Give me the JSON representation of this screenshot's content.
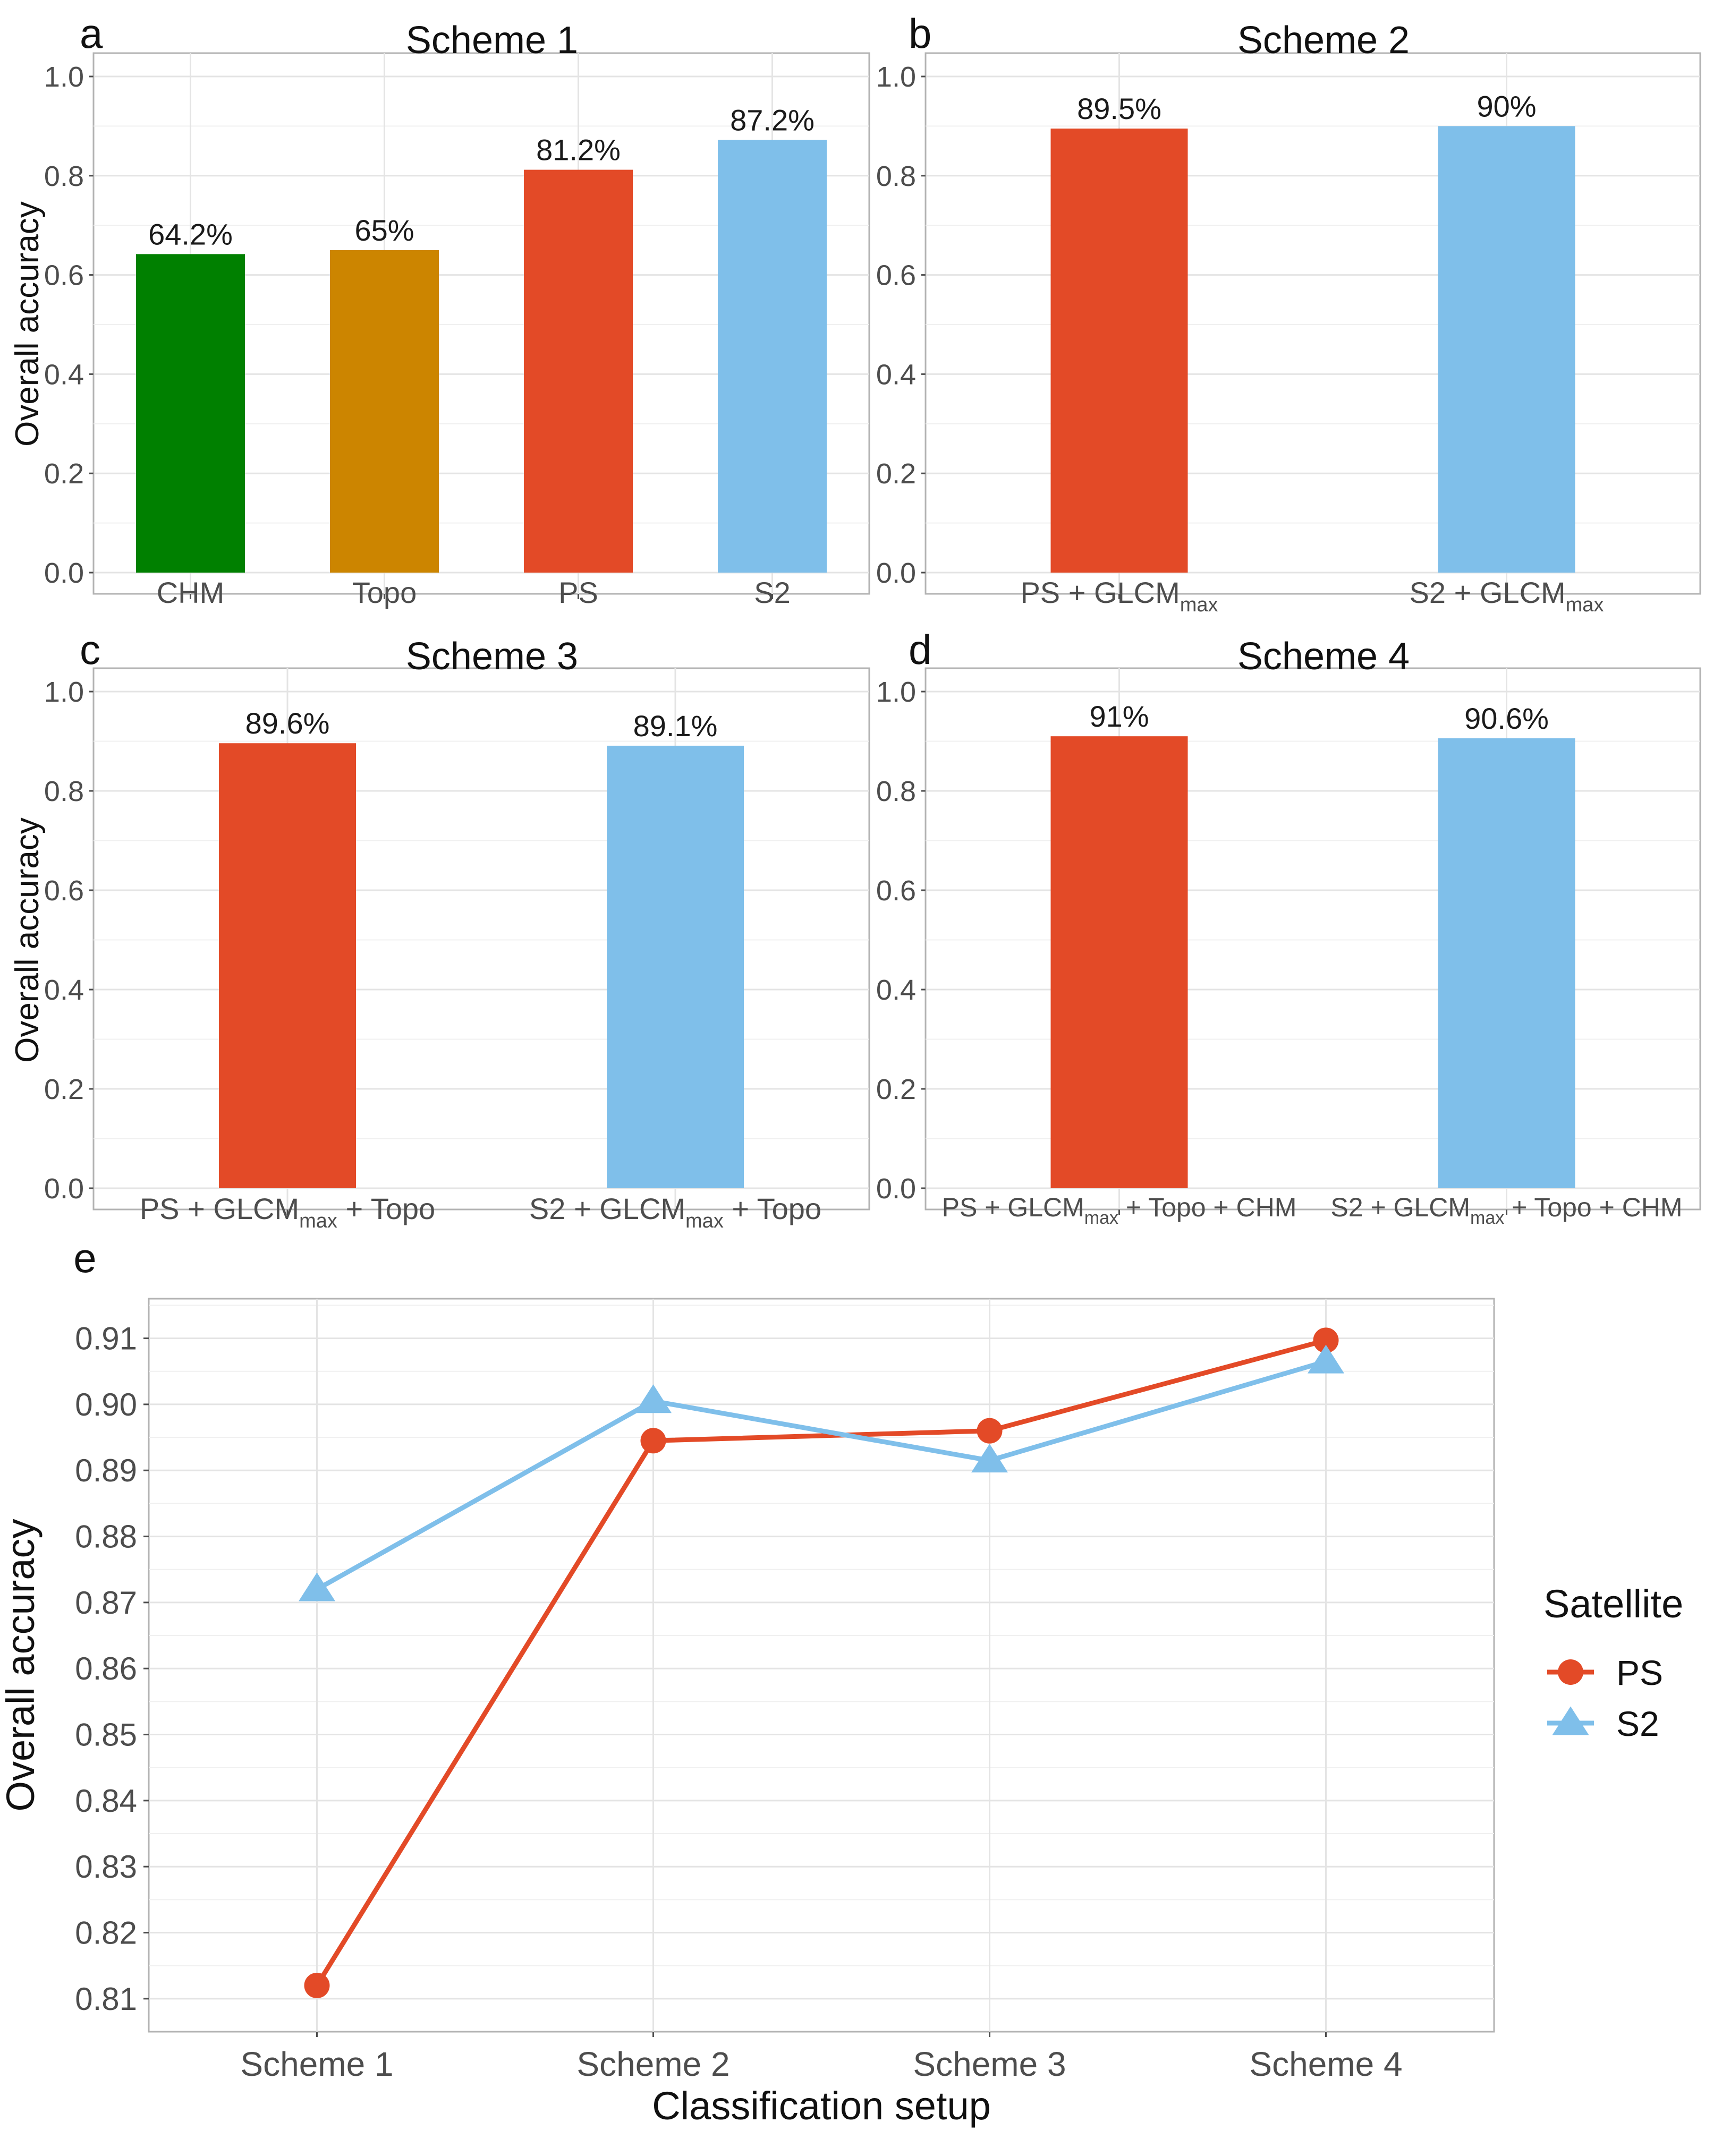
{
  "chart_data": [
    {
      "type": "bar",
      "panel_letter": "a",
      "title": "Scheme 1",
      "ylabel": "Overall accuracy",
      "xlabel": "",
      "ylim": [
        0,
        1.0
      ],
      "yticks": [
        "0.0",
        "0.2",
        "0.4",
        "0.6",
        "0.8",
        "1.0"
      ],
      "grid": true,
      "categories": [
        {
          "parts": [
            {
              "t": "CHM"
            }
          ]
        },
        {
          "parts": [
            {
              "t": "Topo"
            }
          ]
        },
        {
          "parts": [
            {
              "t": "PS"
            }
          ]
        },
        {
          "parts": [
            {
              "t": "S2"
            }
          ]
        }
      ],
      "values": [
        0.642,
        0.65,
        0.812,
        0.872
      ],
      "labels": [
        "64.2%",
        "65%",
        "81.2%",
        "87.2%"
      ],
      "colors": [
        "#008000",
        "#CC8500",
        "#E34A27",
        "#7FBFEA"
      ]
    },
    {
      "type": "bar",
      "panel_letter": "b",
      "title": "Scheme 2",
      "ylabel": "",
      "xlabel": "",
      "ylim": [
        0,
        1.0
      ],
      "yticks": [
        "0.0",
        "0.2",
        "0.4",
        "0.6",
        "0.8",
        "1.0"
      ],
      "grid": true,
      "categories": [
        {
          "parts": [
            {
              "t": "PS + GLCM"
            },
            {
              "t": "max",
              "sub": true
            }
          ]
        },
        {
          "parts": [
            {
              "t": "S2 + GLCM"
            },
            {
              "t": "max",
              "sub": true
            }
          ]
        }
      ],
      "values": [
        0.895,
        0.9
      ],
      "labels": [
        "89.5%",
        "90%"
      ],
      "colors": [
        "#E34A27",
        "#7FBFEA"
      ]
    },
    {
      "type": "bar",
      "panel_letter": "c",
      "title": "Scheme 3",
      "ylabel": "Overall accuracy",
      "xlabel": "",
      "ylim": [
        0,
        1.0
      ],
      "yticks": [
        "0.0",
        "0.2",
        "0.4",
        "0.6",
        "0.8",
        "1.0"
      ],
      "grid": true,
      "categories": [
        {
          "parts": [
            {
              "t": "PS + GLCM"
            },
            {
              "t": "max",
              "sub": true
            },
            {
              "t": " + Topo"
            }
          ]
        },
        {
          "parts": [
            {
              "t": "S2 + GLCM"
            },
            {
              "t": "max",
              "sub": true
            },
            {
              "t": " + Topo"
            }
          ]
        }
      ],
      "values": [
        0.896,
        0.891
      ],
      "labels": [
        "89.6%",
        "89.1%"
      ],
      "colors": [
        "#E34A27",
        "#7FBFEA"
      ]
    },
    {
      "type": "bar",
      "panel_letter": "d",
      "title": "Scheme 4",
      "ylabel": "",
      "xlabel": "",
      "ylim": [
        0,
        1.0
      ],
      "yticks": [
        "0.0",
        "0.2",
        "0.4",
        "0.6",
        "0.8",
        "1.0"
      ],
      "grid": true,
      "categories": [
        {
          "parts": [
            {
              "t": "PS + GLCM"
            },
            {
              "t": "max",
              "sub": true
            },
            {
              "t": " + Topo + CHM"
            }
          ]
        },
        {
          "parts": [
            {
              "t": "S2 + GLCM"
            },
            {
              "t": "max",
              "sub": true
            },
            {
              "t": " + Topo + CHM"
            }
          ]
        }
      ],
      "values": [
        0.91,
        0.906
      ],
      "labels": [
        "91%",
        "90.6%"
      ],
      "colors": [
        "#E34A27",
        "#7FBFEA"
      ]
    },
    {
      "type": "line",
      "panel_letter": "e",
      "title": "",
      "xlabel": "Classification setup",
      "ylabel": "Overall accuracy",
      "ylim": [
        0.805,
        0.916
      ],
      "yticks": [
        "0.81",
        "0.82",
        "0.83",
        "0.84",
        "0.85",
        "0.86",
        "0.87",
        "0.88",
        "0.89",
        "0.90",
        "0.91"
      ],
      "grid": true,
      "categories": [
        "Scheme 1",
        "Scheme 2",
        "Scheme 3",
        "Scheme 4"
      ],
      "series": [
        {
          "name": "PS",
          "values": [
            0.812,
            0.8945,
            0.896,
            0.9097
          ],
          "color": "#E34A27",
          "marker": "circle"
        },
        {
          "name": "S2",
          "values": [
            0.872,
            0.9005,
            0.8915,
            0.9065
          ],
          "color": "#7FBFEA",
          "marker": "triangle"
        }
      ],
      "legend": {
        "title": "Satellite",
        "position": "right"
      }
    }
  ]
}
